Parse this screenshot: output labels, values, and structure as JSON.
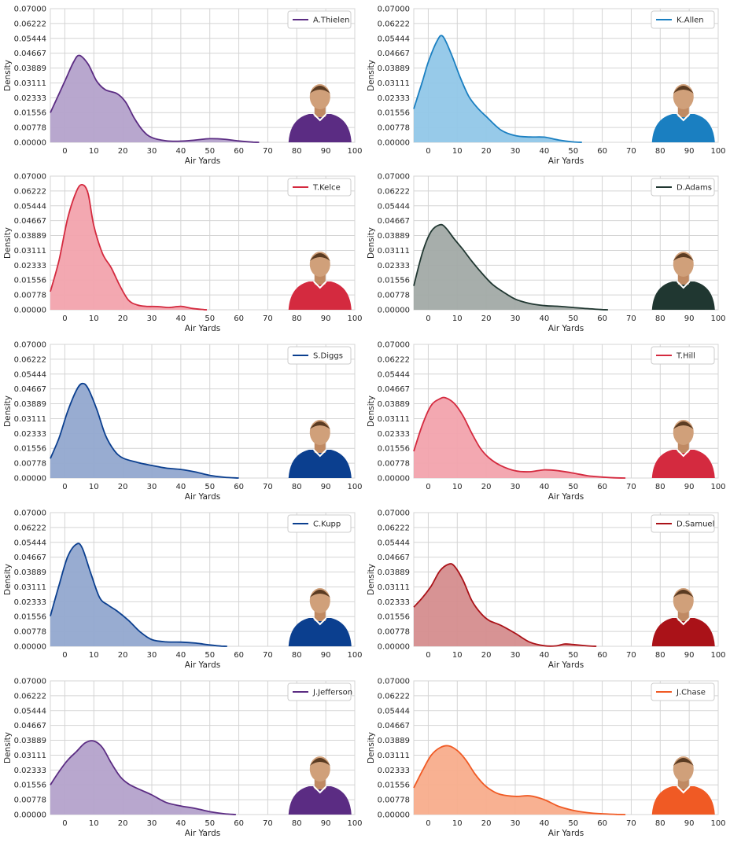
{
  "chart_data": [
    {
      "type": "area",
      "xlabel": "Air Yards",
      "ylabel": "Density",
      "xlim": [
        -5,
        100
      ],
      "ylim": [
        0,
        0.07
      ],
      "xticks": [
        "0",
        "10",
        "20",
        "30",
        "40",
        "50",
        "60",
        "70",
        "80",
        "90",
        "100"
      ],
      "yticks": [
        "0.00000",
        "0.00778",
        "0.01556",
        "0.02333",
        "0.03111",
        "0.03889",
        "0.04667",
        "0.05444",
        "0.06222",
        "0.07000"
      ],
      "grid": true,
      "legend": "top-right",
      "color": "#5b2c83",
      "fill": "#b4a2cb",
      "player_image": "purple-jersey-blond-player-headshot",
      "series": [
        {
          "name": "A.Thielen",
          "x": [
            -5,
            0,
            3,
            5,
            8,
            11,
            14,
            18,
            21,
            24,
            27,
            30,
            35,
            40,
            45,
            50,
            55,
            60,
            65,
            67
          ],
          "y": [
            0.0155,
            0.032,
            0.042,
            0.0455,
            0.041,
            0.032,
            0.0275,
            0.0255,
            0.021,
            0.0125,
            0.006,
            0.0025,
            0.0008,
            0.0006,
            0.0012,
            0.0019,
            0.0016,
            0.0007,
            0.0001,
            0
          ]
        }
      ]
    },
    {
      "type": "area",
      "xlabel": "Air Yards",
      "ylabel": "Density",
      "xlim": [
        -5,
        100
      ],
      "ylim": [
        0,
        0.07
      ],
      "xticks": [
        "0",
        "10",
        "20",
        "30",
        "40",
        "50",
        "60",
        "70",
        "80",
        "90",
        "100"
      ],
      "yticks": [
        "0.00000",
        "0.00778",
        "0.01556",
        "0.02333",
        "0.03111",
        "0.03889",
        "0.04667",
        "0.05444",
        "0.06222",
        "0.07000"
      ],
      "grid": true,
      "legend": "top-right",
      "color": "#1a7fc1",
      "fill": "#91c7e8",
      "player_image": "powder-blue-jersey-bearded-player-headshot",
      "series": [
        {
          "name": "K.Allen",
          "x": [
            -5,
            -2,
            0,
            3,
            5,
            8,
            11,
            14,
            17,
            20,
            25,
            30,
            35,
            40,
            45,
            50,
            53
          ],
          "y": [
            0.0175,
            0.032,
            0.042,
            0.053,
            0.0555,
            0.046,
            0.034,
            0.024,
            0.018,
            0.0135,
            0.0065,
            0.0035,
            0.0028,
            0.0027,
            0.0012,
            0.0002,
            0
          ]
        }
      ]
    },
    {
      "type": "area",
      "xlabel": "Air Yards",
      "ylabel": "Density",
      "xlim": [
        -5,
        100
      ],
      "ylim": [
        0,
        0.07
      ],
      "xticks": [
        "0",
        "10",
        "20",
        "30",
        "40",
        "50",
        "60",
        "70",
        "80",
        "90",
        "100"
      ],
      "yticks": [
        "0.00000",
        "0.00778",
        "0.01556",
        "0.02333",
        "0.03111",
        "0.03889",
        "0.04667",
        "0.05444",
        "0.06222",
        "0.07000"
      ],
      "grid": true,
      "legend": "top-right",
      "color": "#d42a3f",
      "fill": "#f2a3ad",
      "player_image": "red-jersey-player-headshot",
      "series": [
        {
          "name": "T.Kelce",
          "x": [
            -5,
            -2,
            1,
            4,
            6,
            8,
            10,
            13,
            16,
            19,
            22,
            25,
            28,
            32,
            36,
            40,
            44,
            48,
            49
          ],
          "y": [
            0.0095,
            0.026,
            0.048,
            0.062,
            0.0655,
            0.061,
            0.044,
            0.0295,
            0.022,
            0.0125,
            0.005,
            0.0025,
            0.0018,
            0.0017,
            0.0012,
            0.0018,
            0.0007,
            0.0001,
            0
          ]
        }
      ]
    },
    {
      "type": "area",
      "xlabel": "Air Yards",
      "ylabel": "Density",
      "xlim": [
        -5,
        100
      ],
      "ylim": [
        0,
        0.07
      ],
      "xticks": [
        "0",
        "10",
        "20",
        "30",
        "40",
        "50",
        "60",
        "70",
        "80",
        "90",
        "100"
      ],
      "yticks": [
        "0.00000",
        "0.00778",
        "0.01556",
        "0.02333",
        "0.03111",
        "0.03889",
        "0.04667",
        "0.05444",
        "0.06222",
        "0.07000"
      ],
      "grid": true,
      "legend": "top-right",
      "color": "#203731",
      "fill": "#a2aaa6",
      "player_image": "green-jersey-player-headshot",
      "series": [
        {
          "name": "D.Adams",
          "x": [
            -5,
            -2,
            1,
            4,
            6,
            9,
            12,
            15,
            18,
            22,
            26,
            30,
            35,
            40,
            45,
            50,
            55,
            60,
            62
          ],
          "y": [
            0.0125,
            0.03,
            0.041,
            0.0445,
            0.043,
            0.037,
            0.0315,
            0.0255,
            0.02,
            0.0135,
            0.0092,
            0.0056,
            0.0033,
            0.0022,
            0.0018,
            0.0012,
            0.0006,
            0.0001,
            0
          ]
        }
      ]
    },
    {
      "type": "area",
      "xlabel": "Air Yards",
      "ylabel": "Density",
      "xlim": [
        -5,
        100
      ],
      "ylim": [
        0,
        0.07
      ],
      "xticks": [
        "0",
        "10",
        "20",
        "30",
        "40",
        "50",
        "60",
        "70",
        "80",
        "90",
        "100"
      ],
      "yticks": [
        "0.00000",
        "0.00778",
        "0.01556",
        "0.02333",
        "0.03111",
        "0.03889",
        "0.04667",
        "0.05444",
        "0.06222",
        "0.07000"
      ],
      "grid": true,
      "legend": "top-right",
      "color": "#0b3f8f",
      "fill": "#92a8cf",
      "player_image": "blue-jersey-player-headshot",
      "series": [
        {
          "name": "S.Diggs",
          "x": [
            -5,
            -2,
            1,
            4,
            6,
            8,
            11,
            14,
            17,
            20,
            25,
            30,
            35,
            40,
            45,
            50,
            55,
            60
          ],
          "y": [
            0.0102,
            0.021,
            0.035,
            0.046,
            0.0495,
            0.047,
            0.036,
            0.0225,
            0.0145,
            0.0105,
            0.0082,
            0.0066,
            0.0052,
            0.0045,
            0.0032,
            0.0014,
            0.0004,
            0
          ]
        }
      ]
    },
    {
      "type": "area",
      "xlabel": "Air Yards",
      "ylabel": "Density",
      "xlim": [
        -5,
        100
      ],
      "ylim": [
        0,
        0.07
      ],
      "xticks": [
        "0",
        "10",
        "20",
        "30",
        "40",
        "50",
        "60",
        "70",
        "80",
        "90",
        "100"
      ],
      "yticks": [
        "0.00000",
        "0.00778",
        "0.01556",
        "0.02333",
        "0.03111",
        "0.03889",
        "0.04667",
        "0.05444",
        "0.06222",
        "0.07000"
      ],
      "grid": true,
      "legend": "top-right",
      "color": "#d42a3f",
      "fill": "#f2a3ad",
      "player_image": "red-jersey-player-headshot",
      "series": [
        {
          "name": "T.Hill",
          "x": [
            -5,
            -2,
            1,
            4,
            6,
            9,
            12,
            15,
            18,
            21,
            25,
            30,
            35,
            40,
            45,
            50,
            55,
            60,
            65,
            68
          ],
          "y": [
            0.014,
            0.028,
            0.038,
            0.0415,
            0.042,
            0.039,
            0.0325,
            0.0235,
            0.0155,
            0.0105,
            0.0065,
            0.0038,
            0.0033,
            0.0043,
            0.0038,
            0.0026,
            0.0012,
            0.0005,
            0.0001,
            0
          ]
        }
      ]
    },
    {
      "type": "area",
      "xlabel": "Air Yards",
      "ylabel": "Density",
      "xlim": [
        -5,
        100
      ],
      "ylim": [
        0,
        0.07
      ],
      "xticks": [
        "0",
        "10",
        "20",
        "30",
        "40",
        "50",
        "60",
        "70",
        "80",
        "90",
        "100"
      ],
      "yticks": [
        "0.00000",
        "0.00778",
        "0.01556",
        "0.02333",
        "0.03111",
        "0.03889",
        "0.04667",
        "0.05444",
        "0.06222",
        "0.07000"
      ],
      "grid": true,
      "legend": "top-right",
      "color": "#0b3f8f",
      "fill": "#92a8cf",
      "player_image": "blue-yellow-jersey-blond-player-headshot",
      "series": [
        {
          "name": "C.Kupp",
          "x": [
            -5,
            -2,
            1,
            4,
            6,
            9,
            12,
            15,
            18,
            22,
            26,
            30,
            35,
            40,
            45,
            50,
            54,
            56
          ],
          "y": [
            0.0158,
            0.032,
            0.047,
            0.0535,
            0.0515,
            0.038,
            0.0255,
            0.0215,
            0.0185,
            0.0135,
            0.0075,
            0.0035,
            0.0023,
            0.0022,
            0.0017,
            0.0007,
            0.0001,
            0
          ]
        }
      ]
    },
    {
      "type": "area",
      "xlabel": "Air Yards",
      "ylabel": "Density",
      "xlim": [
        -5,
        100
      ],
      "ylim": [
        0,
        0.07
      ],
      "xticks": [
        "0",
        "10",
        "20",
        "30",
        "40",
        "50",
        "60",
        "70",
        "80",
        "90",
        "100"
      ],
      "yticks": [
        "0.00000",
        "0.00778",
        "0.01556",
        "0.02333",
        "0.03111",
        "0.03889",
        "0.04667",
        "0.05444",
        "0.06222",
        "0.07000"
      ],
      "grid": true,
      "legend": "top-right",
      "color": "#aa1218",
      "fill": "#d58d8e",
      "player_image": "red-jersey-player-headshot",
      "series": [
        {
          "name": "D.Samuel",
          "x": [
            -5,
            -2,
            1,
            4,
            7,
            9,
            12,
            15,
            18,
            21,
            25,
            30,
            35,
            40,
            44,
            47,
            50,
            55,
            58
          ],
          "y": [
            0.0205,
            0.0255,
            0.0315,
            0.0395,
            0.043,
            0.042,
            0.0345,
            0.024,
            0.0175,
            0.0135,
            0.011,
            0.0068,
            0.0022,
            0.0003,
            0.0002,
            0.0012,
            0.0009,
            0.0002,
            0
          ]
        }
      ]
    },
    {
      "type": "area",
      "xlabel": "Air Yards",
      "ylabel": "Density",
      "xlim": [
        -5,
        100
      ],
      "ylim": [
        0,
        0.07
      ],
      "xticks": [
        "0",
        "10",
        "20",
        "30",
        "40",
        "50",
        "60",
        "70",
        "80",
        "90",
        "100"
      ],
      "yticks": [
        "0.00000",
        "0.00778",
        "0.01556",
        "0.02333",
        "0.03111",
        "0.03889",
        "0.04667",
        "0.05444",
        "0.06222",
        "0.07000"
      ],
      "grid": true,
      "legend": "top-right",
      "color": "#5b2c83",
      "fill": "#b4a2cb",
      "player_image": "purple-jersey-player-headshot",
      "series": [
        {
          "name": "J.Jefferson",
          "x": [
            -5,
            -2,
            1,
            4,
            7,
            10,
            13,
            16,
            19,
            22,
            26,
            30,
            35,
            40,
            45,
            50,
            55,
            59
          ],
          "y": [
            0.0155,
            0.0225,
            0.0285,
            0.033,
            0.0375,
            0.0385,
            0.035,
            0.027,
            0.02,
            0.016,
            0.013,
            0.0103,
            0.0063,
            0.0045,
            0.0032,
            0.0015,
            0.0004,
            0
          ]
        }
      ]
    },
    {
      "type": "area",
      "xlabel": "Air Yards",
      "ylabel": "Density",
      "xlim": [
        -5,
        100
      ],
      "ylim": [
        0,
        0.07
      ],
      "xticks": [
        "0",
        "10",
        "20",
        "30",
        "40",
        "50",
        "60",
        "70",
        "80",
        "90",
        "100"
      ],
      "yticks": [
        "0.00000",
        "0.00778",
        "0.01556",
        "0.02333",
        "0.03111",
        "0.03889",
        "0.04667",
        "0.05444",
        "0.06222",
        "0.07000"
      ],
      "grid": true,
      "legend": "top-right",
      "color": "#f05a24",
      "fill": "#f8ad8c",
      "player_image": "black-orange-jersey-player-headshot",
      "series": [
        {
          "name": "J.Chase",
          "x": [
            -5,
            -2,
            1,
            4,
            7,
            10,
            13,
            16,
            19,
            22,
            25,
            30,
            35,
            40,
            45,
            50,
            55,
            60,
            65,
            68
          ],
          "y": [
            0.014,
            0.023,
            0.031,
            0.035,
            0.036,
            0.0335,
            0.0285,
            0.0215,
            0.016,
            0.0125,
            0.0105,
            0.0095,
            0.0098,
            0.0078,
            0.0043,
            0.0022,
            0.001,
            0.0004,
            0.0001,
            0
          ]
        }
      ]
    }
  ]
}
